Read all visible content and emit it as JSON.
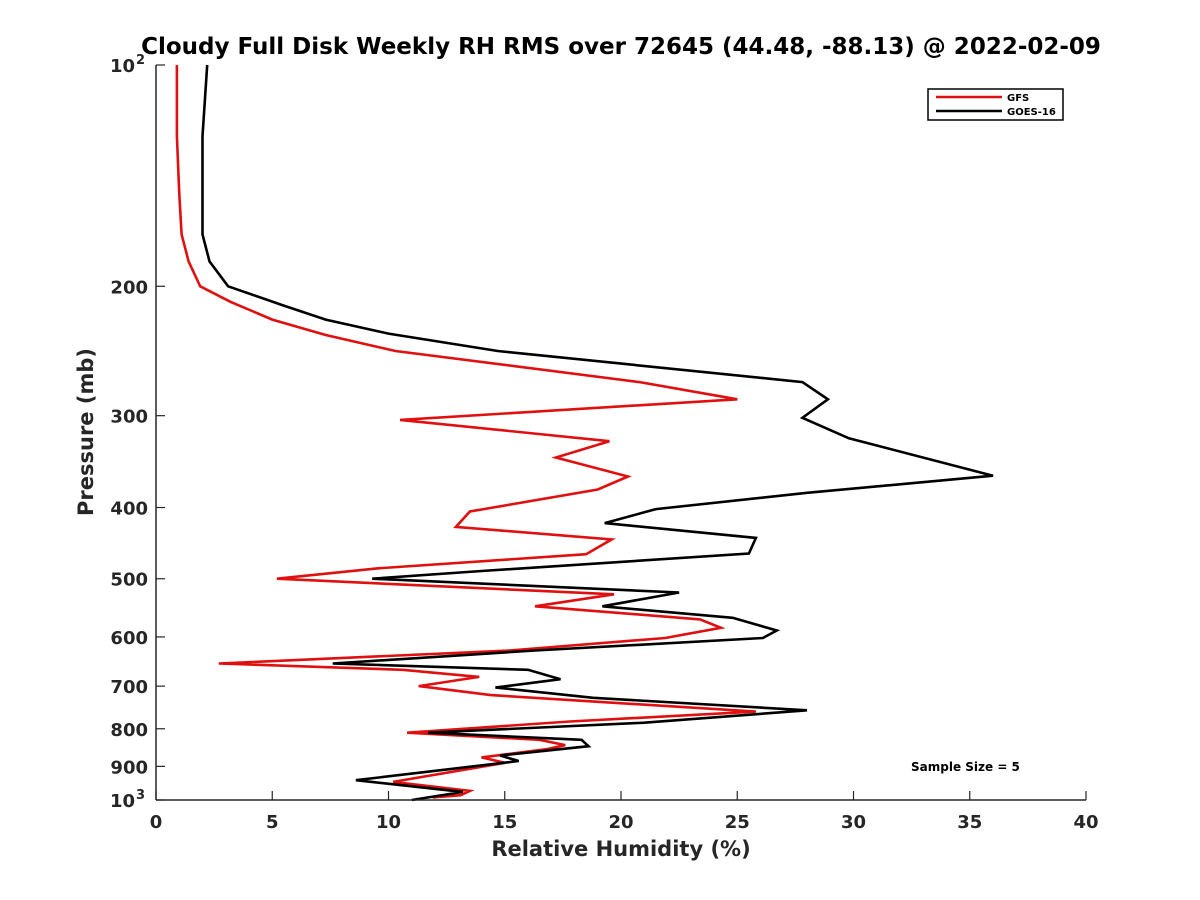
{
  "chart_data": {
    "type": "line",
    "title": "Cloudy Full Disk Weekly RH RMS over 72645 (44.48, -88.13) @ 2022-02-09",
    "xlabel": "Relative Humidity (%)",
    "ylabel": "Pressure (mb)",
    "xlim": [
      0,
      40
    ],
    "ylim": [
      1000,
      100
    ],
    "y_scale": "log",
    "y_reversed": true,
    "x_ticks": [
      0,
      5,
      10,
      15,
      20,
      25,
      30,
      35,
      40
    ],
    "x_tick_labels": [
      "0",
      "5",
      "10",
      "15",
      "20",
      "25",
      "30",
      "35",
      "40"
    ],
    "y_ticks": [
      100,
      200,
      300,
      400,
      500,
      600,
      700,
      800,
      900,
      1000
    ],
    "y_tick_labels": [
      {
        "base": "10",
        "exp": "2"
      },
      {
        "base": "200",
        "exp": ""
      },
      {
        "base": "300",
        "exp": ""
      },
      {
        "base": "400",
        "exp": ""
      },
      {
        "base": "500",
        "exp": ""
      },
      {
        "base": "600",
        "exp": ""
      },
      {
        "base": "700",
        "exp": ""
      },
      {
        "base": "800",
        "exp": ""
      },
      {
        "base": "900",
        "exp": ""
      },
      {
        "base": "10",
        "exp": "3"
      }
    ],
    "grid": false,
    "legend": {
      "position": "top-right"
    },
    "annotation": "Sample Size = 5",
    "series": [
      {
        "name": "GFS",
        "color": "#e01010",
        "points": [
          [
            0.9,
            100
          ],
          [
            0.9,
            125
          ],
          [
            1.0,
            150
          ],
          [
            1.1,
            170
          ],
          [
            1.4,
            185
          ],
          [
            1.9,
            200
          ],
          [
            3.2,
            210
          ],
          [
            5.0,
            222
          ],
          [
            7.3,
            233
          ],
          [
            10.3,
            245
          ],
          [
            20.8,
            270
          ],
          [
            25.0,
            285
          ],
          [
            10.5,
            304
          ],
          [
            19.5,
            325
          ],
          [
            17.2,
            342
          ],
          [
            20.3,
            363
          ],
          [
            19.0,
            378
          ],
          [
            13.5,
            405
          ],
          [
            12.9,
            425
          ],
          [
            19.6,
            442
          ],
          [
            18.5,
            463
          ],
          [
            9.5,
            484
          ],
          [
            5.2,
            500
          ],
          [
            19.7,
            525
          ],
          [
            16.3,
            545
          ],
          [
            23.4,
            568
          ],
          [
            24.3,
            583
          ],
          [
            21.9,
            602
          ],
          [
            15.2,
            626
          ],
          [
            2.7,
            652
          ],
          [
            10.6,
            665
          ],
          [
            13.9,
            680
          ],
          [
            11.3,
            700
          ],
          [
            14.4,
            720
          ],
          [
            25.8,
            758
          ],
          [
            17.8,
            782
          ],
          [
            10.8,
            810
          ],
          [
            16.5,
            828
          ],
          [
            17.6,
            842
          ],
          [
            16.8,
            853
          ],
          [
            14.0,
            875
          ],
          [
            15.0,
            890
          ],
          [
            10.2,
            945
          ],
          [
            13.5,
            972
          ],
          [
            13.1,
            985
          ],
          [
            11.9,
            992
          ]
        ]
      },
      {
        "name": "GOES-16",
        "color": "#000000",
        "points": [
          [
            2.2,
            100
          ],
          [
            2.0,
            125
          ],
          [
            2.0,
            150
          ],
          [
            2.0,
            170
          ],
          [
            2.3,
            185
          ],
          [
            3.1,
            200
          ],
          [
            5.4,
            212
          ],
          [
            7.3,
            222
          ],
          [
            10.0,
            232
          ],
          [
            14.7,
            245
          ],
          [
            27.8,
            270
          ],
          [
            28.9,
            285
          ],
          [
            27.8,
            302
          ],
          [
            29.8,
            322
          ],
          [
            36.0,
            362
          ],
          [
            28.0,
            382
          ],
          [
            21.5,
            402
          ],
          [
            19.3,
            420
          ],
          [
            25.8,
            440
          ],
          [
            25.5,
            462
          ],
          [
            14.0,
            488
          ],
          [
            9.3,
            500
          ],
          [
            22.5,
            522
          ],
          [
            19.2,
            545
          ],
          [
            24.8,
            565
          ],
          [
            26.7,
            588
          ],
          [
            26.1,
            602
          ],
          [
            16.3,
            626
          ],
          [
            7.6,
            652
          ],
          [
            16.0,
            665
          ],
          [
            17.4,
            685
          ],
          [
            14.6,
            703
          ],
          [
            18.8,
            726
          ],
          [
            28.0,
            755
          ],
          [
            21.0,
            785
          ],
          [
            11.7,
            810
          ],
          [
            18.3,
            828
          ],
          [
            18.6,
            845
          ],
          [
            14.8,
            870
          ],
          [
            15.6,
            885
          ],
          [
            8.6,
            940
          ],
          [
            13.2,
            975
          ],
          [
            11.0,
            1000
          ]
        ]
      }
    ]
  }
}
